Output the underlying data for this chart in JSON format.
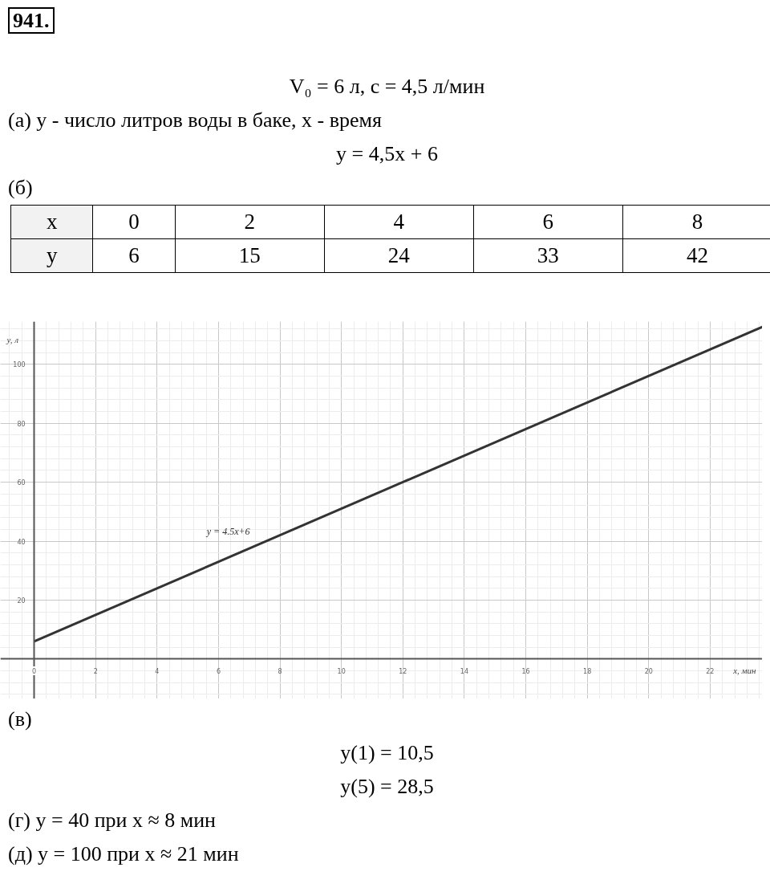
{
  "chart_data": {
    "type": "line",
    "xlabel": "x, мин",
    "ylabel": "y, л",
    "x": [
      0,
      23.7
    ],
    "series": [
      {
        "name": "y = 4.5x+6",
        "color": "#333333",
        "values": [
          6,
          112.7
        ]
      }
    ],
    "xlim": [
      -1.1,
      23.7
    ],
    "ylim": [
      -13.5,
      114.5
    ],
    "xticks": [
      0,
      2,
      4,
      6,
      8,
      10,
      12,
      14,
      16,
      18,
      20,
      22
    ],
    "yticks": [
      20,
      40,
      60,
      80,
      100
    ],
    "grid": true,
    "line_style": "solid",
    "marker": "none",
    "annotations": [
      "941.",
      "V₀ = 6 л,      c = 4,5 л/мин",
      "(а) y - число литров воды в баке, x - время",
      "y = 4,5x + 6",
      "(б)",
      "x",
      "0",
      "2",
      "4",
      "6",
      "8",
      "y",
      "6",
      "15",
      "24",
      "33",
      "42",
      "(в)",
      "y(1) = 10,5",
      "y(5) = 28,5",
      "(г) y = 40 при x ≈ 8 мин",
      "(д) y = 100 при x ≈ 21 мин"
    ]
  }
}
